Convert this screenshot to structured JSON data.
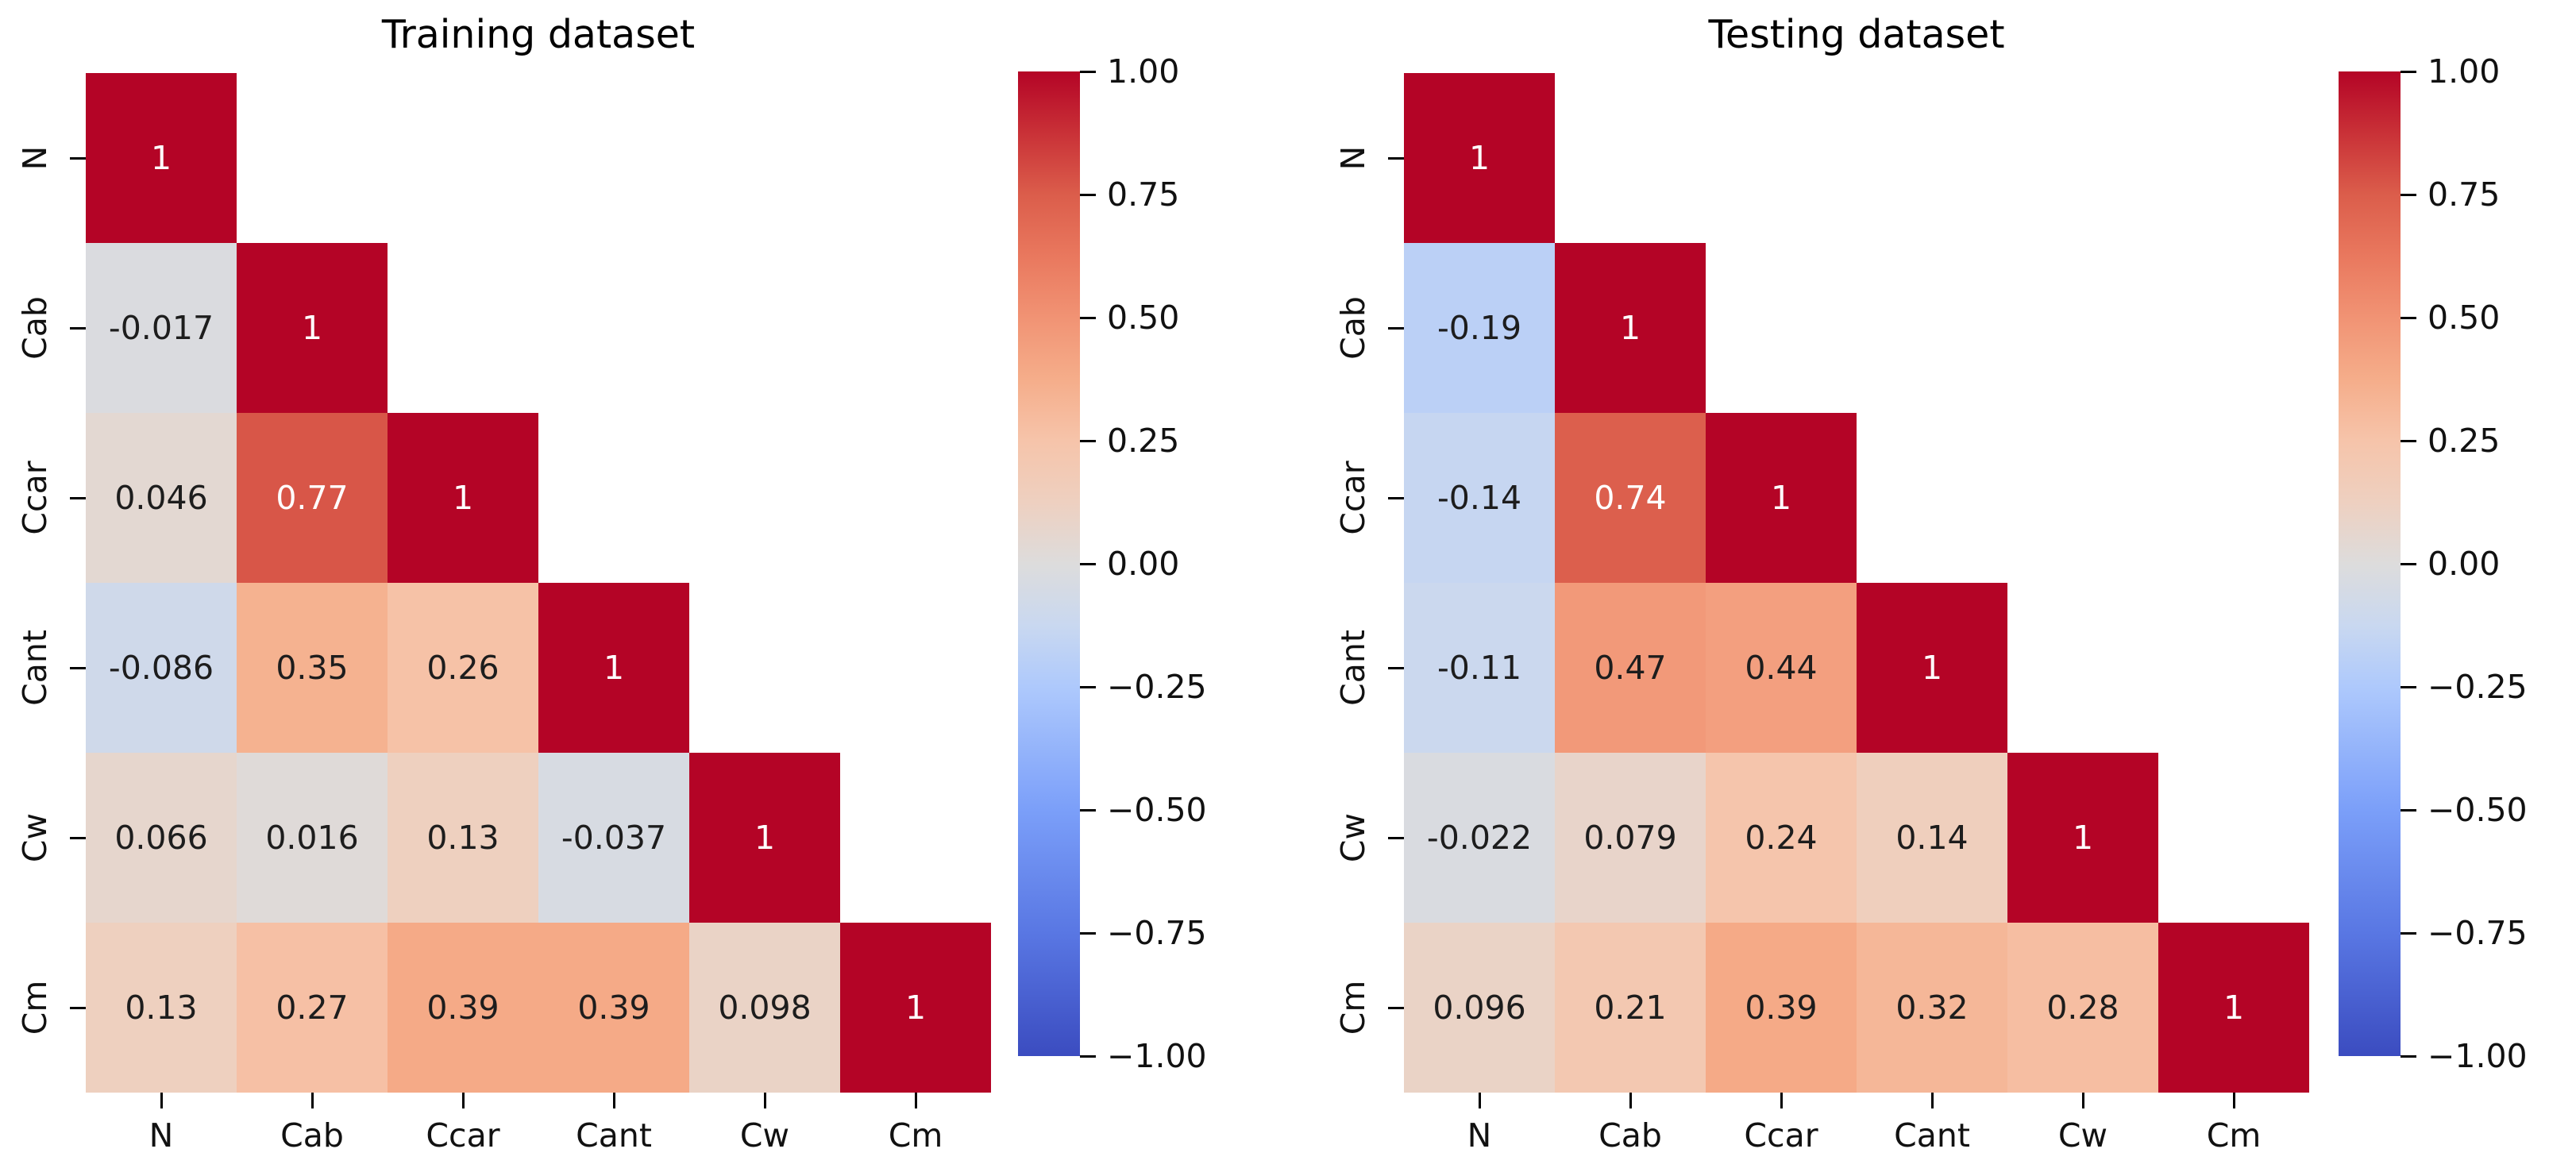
{
  "figure": {
    "background": "#ffffff"
  },
  "chart_data": [
    {
      "type": "heatmap",
      "title": "Training dataset",
      "shape": "lower-triangle",
      "x_tick_labels": [
        "N",
        "Cab",
        "Ccar",
        "Cant",
        "Cw",
        "Cm"
      ],
      "y_tick_labels": [
        "N",
        "Cab",
        "Ccar",
        "Cant",
        "Cw",
        "Cm"
      ],
      "values": [
        [
          1
        ],
        [
          -0.017,
          1
        ],
        [
          0.046,
          0.77,
          1
        ],
        [
          -0.086,
          0.35,
          0.26,
          1
        ],
        [
          0.066,
          0.016,
          0.13,
          -0.037,
          1
        ],
        [
          0.13,
          0.27,
          0.39,
          0.39,
          0.098,
          1
        ]
      ],
      "vmin": -1,
      "vmax": 1,
      "colorbar_tick_labels": [
        "1.00",
        "0.75",
        "0.50",
        "0.25",
        "0.00",
        "−0.25",
        "−0.50",
        "−0.75",
        "−1.00"
      ]
    },
    {
      "type": "heatmap",
      "title": "Testing dataset",
      "shape": "lower-triangle",
      "x_tick_labels": [
        "N",
        "Cab",
        "Ccar",
        "Cant",
        "Cw",
        "Cm"
      ],
      "y_tick_labels": [
        "N",
        "Cab",
        "Ccar",
        "Cant",
        "Cw",
        "Cm"
      ],
      "values": [
        [
          1
        ],
        [
          -0.19,
          1
        ],
        [
          -0.14,
          0.74,
          1
        ],
        [
          -0.11,
          0.47,
          0.44,
          1
        ],
        [
          -0.022,
          0.079,
          0.24,
          0.14,
          1
        ],
        [
          0.096,
          0.21,
          0.39,
          0.32,
          0.28,
          1
        ]
      ],
      "vmin": -1,
      "vmax": 1,
      "colorbar_tick_labels": [
        "1.00",
        "0.75",
        "0.50",
        "0.25",
        "0.00",
        "−0.25",
        "−0.50",
        "−0.75",
        "−1.00"
      ]
    }
  ],
  "colormap": {
    "name": "coolwarm",
    "anchors": [
      [
        0.0,
        "#3b4cc0"
      ],
      [
        0.125,
        "#5977e3"
      ],
      [
        0.25,
        "#7b9ff9"
      ],
      [
        0.375,
        "#aec9fc"
      ],
      [
        0.4375,
        "#c9d8f0"
      ],
      [
        0.5,
        "#dddcdc"
      ],
      [
        0.5625,
        "#eed0c0"
      ],
      [
        0.625,
        "#f6c4aa"
      ],
      [
        0.6875,
        "#f5ad8a"
      ],
      [
        0.75,
        "#f19374"
      ],
      [
        0.8125,
        "#e9785e"
      ],
      [
        0.875,
        "#db5d4b"
      ],
      [
        0.9375,
        "#c93137"
      ],
      [
        1.0,
        "#b40426"
      ]
    ],
    "annotation_text_dark": "#1d1d1d",
    "annotation_text_light": "#ffffff"
  }
}
